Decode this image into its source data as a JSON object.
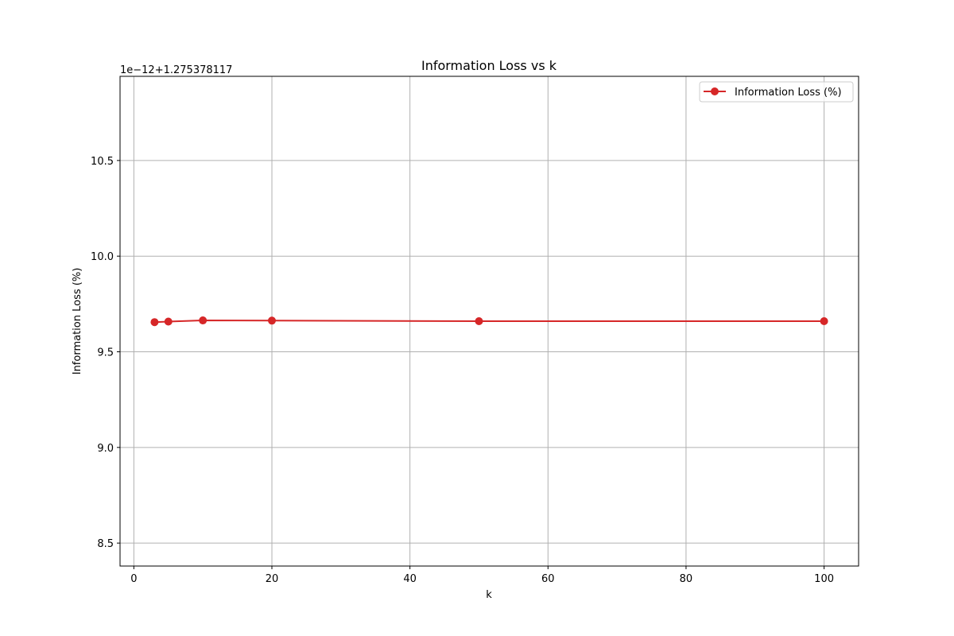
{
  "chart_data": {
    "type": "line",
    "title": "Information Loss vs k",
    "xlabel": "k",
    "ylabel": "Information Loss (%)",
    "y_offset_label": "1e−12+1.275378117",
    "xlim": [
      -2,
      105
    ],
    "ylim": [
      8.38,
      10.94
    ],
    "x_ticks": [
      0,
      20,
      40,
      60,
      80,
      100
    ],
    "y_ticks": [
      8.5,
      9.0,
      9.5,
      10.0,
      10.5
    ],
    "x_tick_labels": [
      "0",
      "20",
      "40",
      "60",
      "80",
      "100"
    ],
    "y_tick_labels": [
      "8.5",
      "9.0",
      "9.5",
      "10.0",
      "10.5"
    ],
    "grid": true,
    "legend_position": "top-right",
    "series": [
      {
        "name": "Information Loss (%)",
        "color": "#d62728",
        "marker": "circle",
        "x": [
          3,
          5,
          10,
          20,
          50,
          100
        ],
        "y": [
          9.655,
          9.658,
          9.664,
          9.663,
          9.66,
          9.66
        ]
      }
    ]
  }
}
